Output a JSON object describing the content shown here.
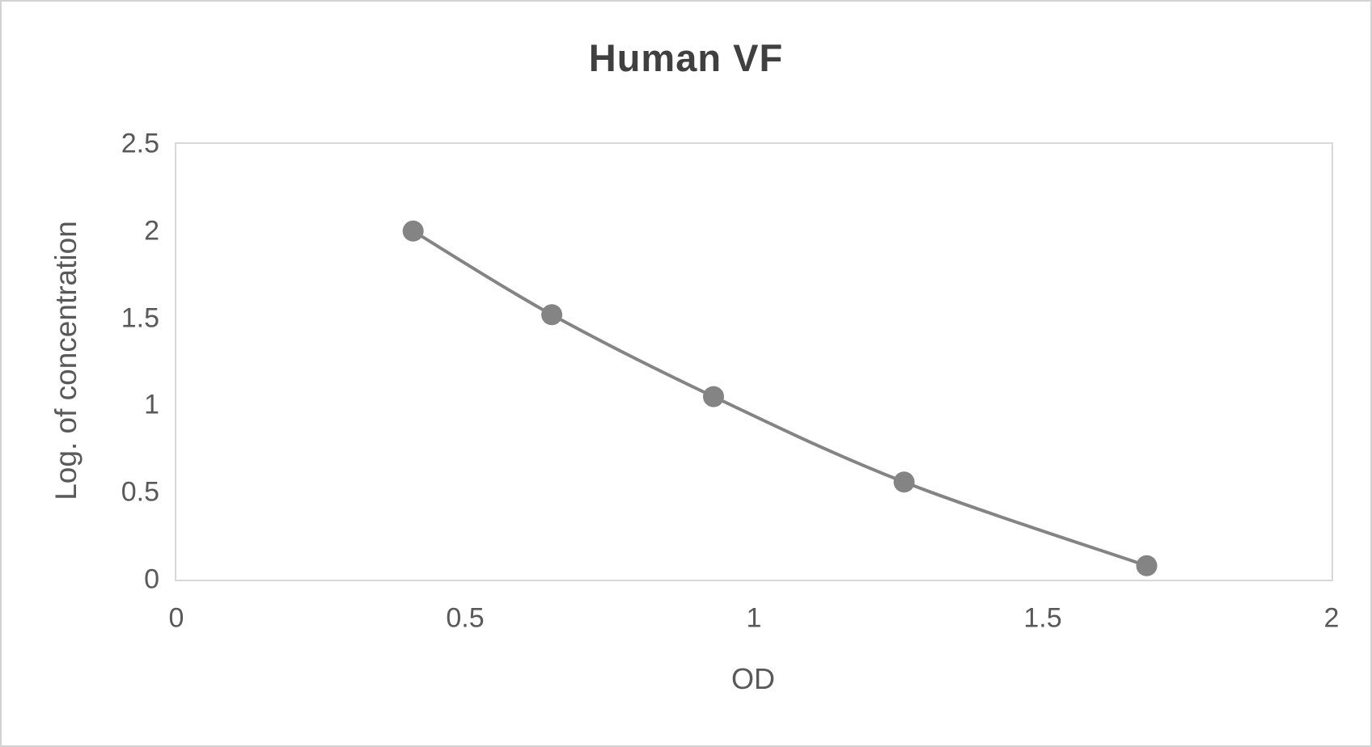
{
  "chart_data": {
    "type": "line",
    "title": "Human VF",
    "xlabel": "OD",
    "ylabel": "Log. of concentration",
    "x": [
      0.41,
      0.65,
      0.93,
      1.26,
      1.68
    ],
    "y": [
      2.0,
      1.52,
      1.05,
      0.56,
      0.08
    ],
    "xlim": [
      0,
      2
    ],
    "ylim": [
      0,
      2.5
    ],
    "x_ticks": [
      {
        "value": 0,
        "label": "0"
      },
      {
        "value": 0.5,
        "label": "0.5"
      },
      {
        "value": 1,
        "label": "1"
      },
      {
        "value": 1.5,
        "label": "1.5"
      },
      {
        "value": 2,
        "label": "2"
      }
    ],
    "y_ticks": [
      {
        "value": 0,
        "label": "0"
      },
      {
        "value": 0.5,
        "label": "0.5"
      },
      {
        "value": 1,
        "label": "1"
      },
      {
        "value": 1.5,
        "label": "1.5"
      },
      {
        "value": 2,
        "label": "2"
      },
      {
        "value": 2.5,
        "label": "2.5"
      }
    ],
    "grid": false,
    "legend": "none",
    "smooth": true,
    "colors": {
      "line": "#848484",
      "marker": "#848484",
      "axis_border": "#d9d9d9",
      "title_text": "#404040",
      "label_text": "#595959"
    }
  }
}
